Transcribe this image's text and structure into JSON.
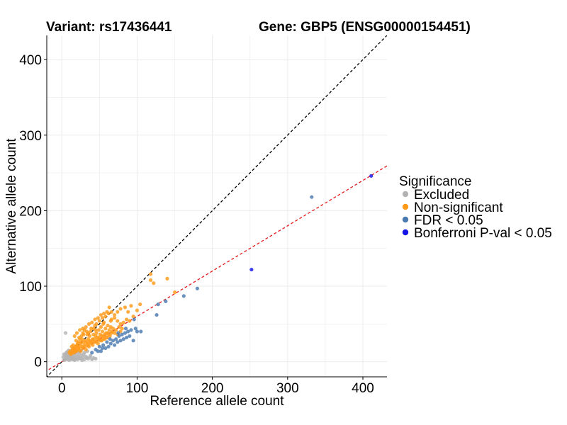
{
  "chart_data": {
    "type": "scatter",
    "title_left": "Variant: rs17436441",
    "title_right": "Gene: GBP5 (ENSG00000154451)",
    "xlabel": "Reference allele count",
    "ylabel": "Alternative allele count",
    "xlim": [
      -20,
      432
    ],
    "ylim": [
      -20,
      432
    ],
    "x_ticks": [
      0,
      100,
      200,
      300,
      400
    ],
    "y_ticks": [
      0,
      100,
      200,
      300,
      400
    ],
    "grid": true,
    "reference_lines": [
      {
        "kind": "identity",
        "slope": 1,
        "intercept": 0,
        "color": "#000000",
        "dash": true
      },
      {
        "kind": "fit",
        "slope": 0.6,
        "intercept": 0,
        "color": "#e41a1c",
        "dash": true
      }
    ],
    "legend": {
      "title": "Significance",
      "position": "right",
      "entries": [
        {
          "label": "Excluded",
          "color": "#b3b3b3"
        },
        {
          "label": "Non-significant",
          "color": "#ff9a1a"
        },
        {
          "label": "FDR < 0.05",
          "color": "#4a7ab0"
        },
        {
          "label": "Bonferroni P-val < 0.05",
          "color": "#1515e6"
        }
      ]
    },
    "series": [
      {
        "name": "Excluded",
        "color": "#b3b3b3",
        "points": [
          [
            3,
            2
          ],
          [
            4,
            5
          ],
          [
            5,
            3
          ],
          [
            6,
            8
          ],
          [
            6,
            4
          ],
          [
            7,
            6
          ],
          [
            8,
            3
          ],
          [
            8,
            10
          ],
          [
            9,
            5
          ],
          [
            10,
            7
          ],
          [
            10,
            2
          ],
          [
            11,
            9
          ],
          [
            12,
            4
          ],
          [
            12,
            12
          ],
          [
            13,
            6
          ],
          [
            14,
            3
          ],
          [
            14,
            10
          ],
          [
            15,
            5
          ],
          [
            16,
            8
          ],
          [
            17,
            2
          ],
          [
            17,
            12
          ],
          [
            18,
            6
          ],
          [
            19,
            4
          ],
          [
            20,
            9
          ],
          [
            20,
            14
          ],
          [
            21,
            3
          ],
          [
            22,
            7
          ],
          [
            23,
            5
          ],
          [
            24,
            11
          ],
          [
            25,
            4
          ],
          [
            26,
            8
          ],
          [
            27,
            2
          ],
          [
            28,
            6
          ],
          [
            29,
            10
          ],
          [
            30,
            3
          ],
          [
            32,
            7
          ],
          [
            33,
            5
          ],
          [
            35,
            4
          ],
          [
            37,
            6
          ],
          [
            40,
            3
          ],
          [
            42,
            5
          ],
          [
            45,
            4
          ],
          [
            5,
            38
          ],
          [
            2,
            6
          ],
          [
            4,
            9
          ],
          [
            7,
            13
          ],
          [
            9,
            15
          ],
          [
            11,
            4
          ],
          [
            15,
            12
          ],
          [
            18,
            16
          ],
          [
            22,
            13
          ],
          [
            26,
            15
          ],
          [
            30,
            12
          ],
          [
            34,
            14
          ],
          [
            38,
            8
          ],
          [
            3,
            10
          ],
          [
            6,
            12
          ],
          [
            13,
            15
          ],
          [
            16,
            3
          ]
        ]
      },
      {
        "name": "Non-significant",
        "color": "#ff9a1a",
        "points": [
          [
            12,
            10
          ],
          [
            14,
            16
          ],
          [
            15,
            22
          ],
          [
            16,
            12
          ],
          [
            18,
            20
          ],
          [
            19,
            28
          ],
          [
            20,
            15
          ],
          [
            21,
            24
          ],
          [
            22,
            18
          ],
          [
            23,
            32
          ],
          [
            24,
            20
          ],
          [
            25,
            14
          ],
          [
            26,
            26
          ],
          [
            27,
            30
          ],
          [
            28,
            18
          ],
          [
            29,
            36
          ],
          [
            30,
            22
          ],
          [
            31,
            28
          ],
          [
            32,
            16
          ],
          [
            33,
            40
          ],
          [
            34,
            24
          ],
          [
            35,
            30
          ],
          [
            36,
            20
          ],
          [
            37,
            34
          ],
          [
            38,
            26
          ],
          [
            39,
            44
          ],
          [
            40,
            28
          ],
          [
            41,
            22
          ],
          [
            42,
            36
          ],
          [
            43,
            30
          ],
          [
            44,
            48
          ],
          [
            45,
            26
          ],
          [
            46,
            38
          ],
          [
            47,
            32
          ],
          [
            48,
            24
          ],
          [
            49,
            42
          ],
          [
            50,
            30
          ],
          [
            51,
            36
          ],
          [
            52,
            46
          ],
          [
            53,
            28
          ],
          [
            54,
            40
          ],
          [
            55,
            34
          ],
          [
            56,
            52
          ],
          [
            57,
            30
          ],
          [
            58,
            44
          ],
          [
            59,
            38
          ],
          [
            60,
            32
          ],
          [
            61,
            48
          ],
          [
            62,
            36
          ],
          [
            63,
            42
          ],
          [
            64,
            34
          ],
          [
            65,
            46
          ],
          [
            66,
            38
          ],
          [
            67,
            40
          ],
          [
            68,
            44
          ],
          [
            70,
            38
          ],
          [
            72,
            42
          ],
          [
            74,
            36
          ],
          [
            76,
            46
          ],
          [
            78,
            40
          ],
          [
            80,
            44
          ],
          [
            17,
            34
          ],
          [
            20,
            38
          ],
          [
            24,
            42
          ],
          [
            28,
            44
          ],
          [
            32,
            46
          ],
          [
            36,
            50
          ],
          [
            40,
            52
          ],
          [
            44,
            56
          ],
          [
            48,
            58
          ],
          [
            52,
            62
          ],
          [
            56,
            64
          ],
          [
            60,
            66
          ],
          [
            63,
            72
          ],
          [
            66,
            56
          ],
          [
            70,
            58
          ],
          [
            74,
            54
          ],
          [
            78,
            50
          ],
          [
            82,
            52
          ],
          [
            86,
            56
          ],
          [
            90,
            54
          ],
          [
            95,
            60
          ],
          [
            100,
            68
          ],
          [
            104,
            76
          ],
          [
            118,
            108
          ],
          [
            122,
            104
          ],
          [
            140,
            110
          ],
          [
            150,
            92
          ],
          [
            118,
            116
          ],
          [
            11,
            14
          ],
          [
            13,
            20
          ],
          [
            17,
            18
          ],
          [
            19,
            14
          ],
          [
            21,
            20
          ],
          [
            23,
            16
          ],
          [
            25,
            24
          ],
          [
            27,
            20
          ],
          [
            29,
            26
          ],
          [
            31,
            20
          ],
          [
            33,
            26
          ],
          [
            35,
            22
          ],
          [
            37,
            28
          ],
          [
            39,
            24
          ],
          [
            41,
            30
          ],
          [
            43,
            26
          ],
          [
            45,
            34
          ],
          [
            47,
            28
          ],
          [
            49,
            32
          ],
          [
            51,
            28
          ],
          [
            53,
            34
          ],
          [
            55,
            30
          ],
          [
            57,
            36
          ],
          [
            59,
            32
          ],
          [
            61,
            38
          ],
          [
            14,
            12
          ],
          [
            16,
            18
          ],
          [
            18,
            14
          ],
          [
            20,
            22
          ],
          [
            22,
            26
          ],
          [
            24,
            30
          ],
          [
            26,
            34
          ],
          [
            28,
            38
          ],
          [
            30,
            42
          ],
          [
            34,
            36
          ],
          [
            38,
            40
          ],
          [
            42,
            44
          ],
          [
            46,
            50
          ],
          [
            50,
            54
          ],
          [
            54,
            58
          ],
          [
            58,
            60
          ],
          [
            62,
            64
          ],
          [
            66,
            66
          ],
          [
            70,
            62
          ],
          [
            74,
            66
          ],
          [
            78,
            70
          ],
          [
            84,
            72
          ],
          [
            88,
            66
          ],
          [
            92,
            74
          ],
          [
            10,
            12
          ],
          [
            15,
            15
          ],
          [
            35,
            38
          ],
          [
            45,
            42
          ],
          [
            55,
            50
          ],
          [
            65,
            54
          ]
        ]
      },
      {
        "name": "FDR < 0.05",
        "color": "#4a7ab0",
        "points": [
          [
            40,
            12
          ],
          [
            45,
            16
          ],
          [
            50,
            20
          ],
          [
            52,
            14
          ],
          [
            55,
            22
          ],
          [
            58,
            18
          ],
          [
            60,
            26
          ],
          [
            62,
            20
          ],
          [
            65,
            24
          ],
          [
            68,
            28
          ],
          [
            70,
            22
          ],
          [
            72,
            30
          ],
          [
            74,
            26
          ],
          [
            76,
            34
          ],
          [
            78,
            28
          ],
          [
            80,
            36
          ],
          [
            82,
            30
          ],
          [
            84,
            38
          ],
          [
            86,
            32
          ],
          [
            88,
            40
          ],
          [
            90,
            34
          ],
          [
            92,
            42
          ],
          [
            95,
            28
          ],
          [
            96,
            56
          ],
          [
            98,
            44
          ],
          [
            100,
            40
          ],
          [
            105,
            40
          ],
          [
            126,
            62
          ],
          [
            128,
            76
          ],
          [
            138,
            80
          ],
          [
            162,
            87
          ],
          [
            180,
            97
          ],
          [
            332,
            218
          ],
          [
            48,
            14
          ],
          [
            54,
            18
          ],
          [
            64,
            30
          ],
          [
            85,
            44
          ],
          [
            75,
            38
          ]
        ]
      },
      {
        "name": "Bonferroni P-val < 0.05",
        "color": "#1515e6",
        "points": [
          [
            252,
            122
          ],
          [
            411,
            246
          ]
        ]
      }
    ]
  }
}
